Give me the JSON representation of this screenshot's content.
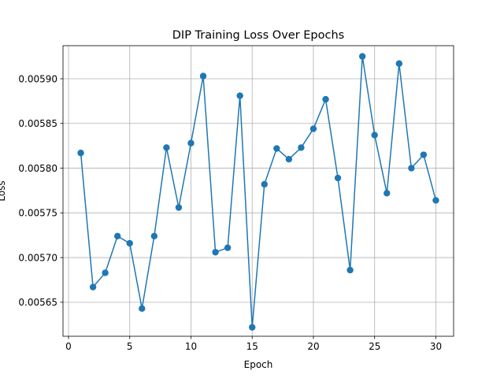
{
  "chart_data": {
    "type": "line",
    "title": "DIP Training Loss Over Epochs",
    "xlabel": "Epoch",
    "ylabel": "Loss",
    "xlim": [
      -0.45,
      31.45
    ],
    "ylim": [
      0.005612,
      0.005937
    ],
    "xticks": [
      0,
      5,
      10,
      15,
      20,
      25,
      30
    ],
    "xtick_labels": [
      "0",
      "5",
      "10",
      "15",
      "20",
      "25",
      "30"
    ],
    "yticks": [
      0.00565,
      0.0057,
      0.00575,
      0.0058,
      0.00585,
      0.0059
    ],
    "ytick_labels": [
      "0.00565",
      "0.00570",
      "0.00575",
      "0.00580",
      "0.00585",
      "0.00590"
    ],
    "grid": true,
    "color": "#1f77b4",
    "marker": "circle",
    "x": [
      1,
      2,
      3,
      4,
      5,
      6,
      7,
      8,
      9,
      10,
      11,
      12,
      13,
      14,
      15,
      16,
      17,
      18,
      19,
      20,
      21,
      22,
      23,
      24,
      25,
      26,
      27,
      28,
      29,
      30
    ],
    "y": [
      0.005817,
      0.005667,
      0.005683,
      0.005724,
      0.005716,
      0.005643,
      0.005724,
      0.005823,
      0.005756,
      0.005828,
      0.005903,
      0.005706,
      0.005711,
      0.005881,
      0.005622,
      0.005782,
      0.005822,
      0.00581,
      0.005823,
      0.005844,
      0.005877,
      0.005789,
      0.005686,
      0.005925,
      0.005837,
      0.005772,
      0.005917,
      0.0058,
      0.005815,
      0.005764
    ]
  }
}
